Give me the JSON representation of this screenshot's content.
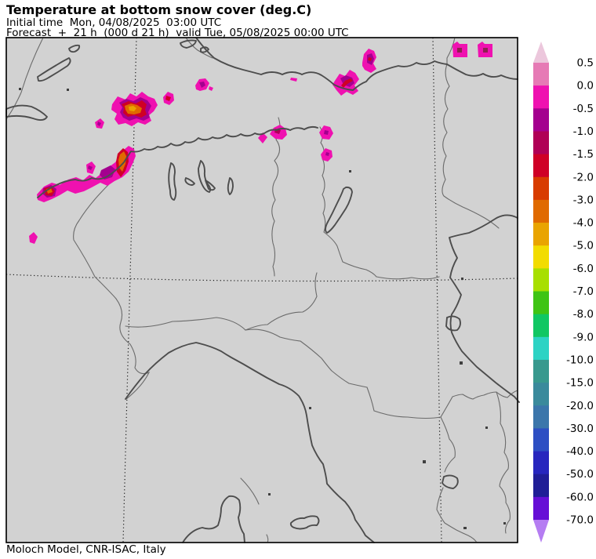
{
  "header": {
    "title": "Temperature at bottom snow cover (deg.C)",
    "initial_time": "Initial time  Mon, 04/08/2025  03:00 UTC",
    "forecast": "Forecast  +  21 h  (000 d 21 h)  valid Tue, 05/08/2025 00:00 UTC"
  },
  "footer": {
    "credit": "Moloch Model, CNR-ISAC, Italy"
  },
  "colorbar": {
    "units": "deg.C",
    "ticks": [
      "0.5",
      "0.0",
      "-0.5",
      "-1.0",
      "-1.5",
      "-2.0",
      "-3.0",
      "-4.0",
      "-5.0",
      "-6.0",
      "-7.0",
      "-8.0",
      "-9.0",
      "-10.0",
      "-15.0",
      "-20.0",
      "-30.0",
      "-40.0",
      "-50.0",
      "-60.0",
      "-70.0"
    ],
    "arrow_top_color": "#ecc7dc",
    "arrow_bottom_color": "#b57df2",
    "segment_colors": [
      "#e67ab5",
      "#ef11b0",
      "#a4008f",
      "#b00056",
      "#cf0026",
      "#d83c00",
      "#e06a00",
      "#e9a400",
      "#f2dc00",
      "#a8df00",
      "#3fc414",
      "#10c763",
      "#2dd3c4",
      "#38998e",
      "#3a8a9c",
      "#3b76ab",
      "#2d4fc3",
      "#2726be",
      "#201e97",
      "#660fd6"
    ]
  },
  "map": {
    "background_color": "#d2d2d2",
    "frame_color": "#000000",
    "coast_color": "#4d4d4d",
    "region_border_color": "#6b6b6b",
    "gridline_color": "#1a1a1a",
    "shading_colors": {
      "magenta_0_to_-0.5": "#ef11b0",
      "pink_0.5_to_0": "#e67ab5",
      "purple_-0.5_to_-1": "#a4008f",
      "maroon_-1_to_-1.5": "#b00056",
      "crimson_-1.5_to_-2": "#cf0026",
      "orange_red_-2_to_-3": "#d83c00",
      "orange_-3_to_-4": "#e06a00",
      "amber_-4_to_-5": "#e9a400"
    }
  }
}
